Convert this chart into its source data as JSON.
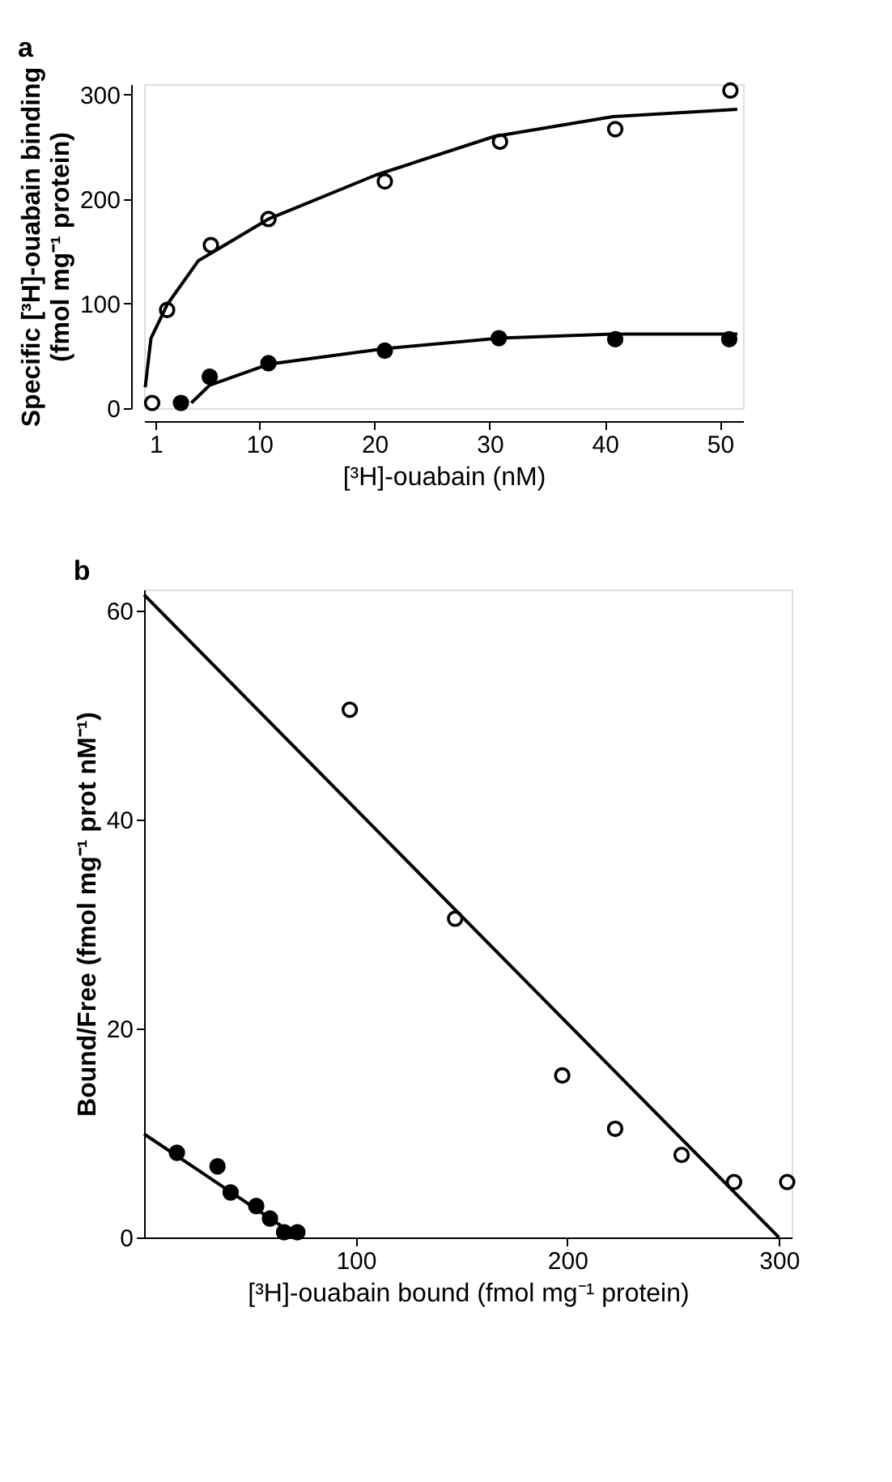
{
  "chart_data": [
    {
      "type": "scatter",
      "title": "a",
      "xlabel": "[³H]-ouabain (nM)",
      "ylabel": "Specific [³H]-ouabain binding\n(fmol mg⁻¹ protein)",
      "marker": "circle",
      "grid": false,
      "xlim": [
        0,
        52
      ],
      "xticks": [
        1,
        10,
        20,
        30,
        40,
        50
      ],
      "ylim": [
        0,
        310
      ],
      "yticks": [
        0,
        100,
        200,
        300
      ],
      "series": [
        {
          "type": "scatter",
          "color": "#ffffff",
          "x": [
            0.7,
            2.0,
            5.8,
            10.8,
            20.9,
            30.9,
            40.9,
            50.9
          ],
          "values": [
            5,
            94,
            156,
            181,
            217,
            255,
            267,
            304
          ]
        },
        {
          "type": "scatter",
          "color": "#000000",
          "x": [
            3.2,
            5.7,
            10.8,
            20.9,
            30.8,
            40.9,
            50.8
          ],
          "values": [
            5,
            30,
            43,
            55,
            67,
            66,
            66
          ]
        },
        {
          "type": "line",
          "color": "#000000",
          "line_style": "solid",
          "marker": "none",
          "x": [
            0.1,
            0.6,
            2,
            4.7,
            10.8,
            20.1,
            30.4,
            40.7,
            51.5
          ],
          "values": [
            20,
            67,
            99,
            141,
            181,
            223,
            260,
            279,
            286
          ]
        },
        {
          "type": "line",
          "color": "#000000",
          "line_style": "solid",
          "marker": "none",
          "x": [
            4.1,
            5.7,
            10.8,
            20.9,
            30.9,
            40.7,
            51.5
          ],
          "values": [
            5,
            22,
            42,
            57,
            67,
            71,
            71
          ]
        }
      ]
    },
    {
      "type": "scatter",
      "title": "b",
      "xlabel": "[³H]-ouabain bound (fmol mg⁻¹ protein)",
      "ylabel": "Bound/Free  (fmol mg⁻¹ prot nM⁻¹)",
      "marker": "circle",
      "grid": false,
      "xlim": [
        0,
        306
      ],
      "xticks": [
        100,
        200,
        300
      ],
      "ylim": [
        0,
        62
      ],
      "yticks": [
        0,
        20,
        40,
        60
      ],
      "series": [
        {
          "type": "scatter",
          "color": "#ffffff",
          "x": [
            97.2,
            147,
            197.6,
            222.6,
            254,
            278.8,
            303.9
          ],
          "values": [
            50.5,
            30.5,
            15.5,
            10.4,
            7.9,
            5.3,
            5.3
          ]
        },
        {
          "type": "scatter",
          "color": "#000000",
          "x": [
            15.5,
            34.7,
            40.9,
            53,
            59.5,
            66.2,
            72.4
          ],
          "values": [
            8.1,
            6.8,
            4.3,
            3.0,
            1.8,
            0.5,
            0.5
          ]
        },
        {
          "type": "line",
          "color": "#000000",
          "line_style": "solid",
          "marker": "none",
          "x": [
            0,
            300
          ],
          "values": [
            61.5,
            0
          ]
        },
        {
          "type": "line",
          "color": "#000000",
          "line_style": "solid",
          "marker": "none",
          "x": [
            0,
            73
          ],
          "values": [
            9.9,
            0
          ]
        }
      ]
    }
  ]
}
